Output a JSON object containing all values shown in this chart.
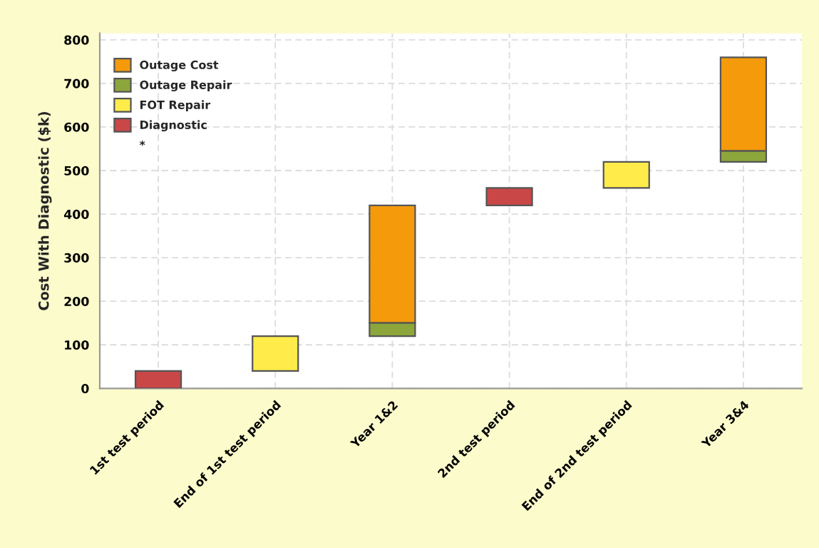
{
  "chart_data": {
    "type": "bar",
    "ylabel": "Cost With Diagnostic ($k)",
    "categories": [
      "1st test period",
      "End of 1st test period",
      "Year 1&2",
      "2nd test period",
      "End of 2nd test period",
      "Year 3&4"
    ],
    "series": [
      {
        "name": "Outage Cost",
        "color": "#f59a0b",
        "base": [
          null,
          null,
          150,
          null,
          null,
          545
        ],
        "values": [
          null,
          null,
          270,
          null,
          null,
          215
        ]
      },
      {
        "name": "Outage Repair",
        "color": "#8ca63c",
        "base": [
          null,
          null,
          120,
          null,
          null,
          520
        ],
        "values": [
          null,
          null,
          30,
          null,
          null,
          25
        ]
      },
      {
        "name": "FOT Repair",
        "color": "#ffec4a",
        "base": [
          null,
          40,
          null,
          null,
          460,
          null
        ],
        "values": [
          null,
          80,
          null,
          null,
          60,
          null
        ]
      },
      {
        "name": "Diagnostic",
        "color": "#c94747",
        "base": [
          0,
          null,
          null,
          420,
          null,
          null
        ],
        "values": [
          40,
          null,
          null,
          40,
          null,
          null
        ]
      }
    ],
    "ylim": [
      0,
      815
    ],
    "yticks": [
      0,
      100,
      200,
      300,
      400,
      500,
      600,
      700,
      800
    ],
    "annotations": [
      "*"
    ],
    "grid": true,
    "legend": "top left"
  }
}
